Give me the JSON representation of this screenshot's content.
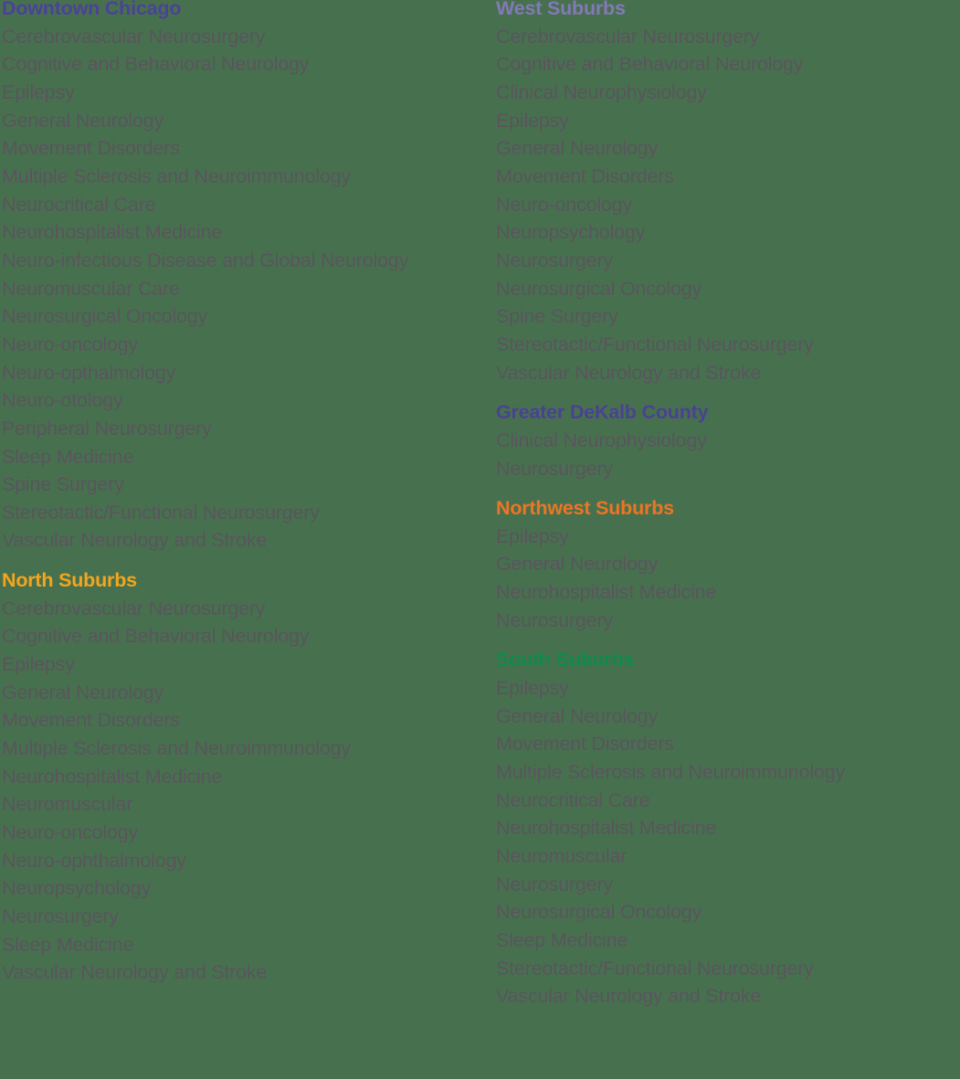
{
  "palette": {
    "background": "#47714E",
    "item_text": "#5A545E"
  },
  "columns": [
    {
      "name": "left",
      "groups": [
        {
          "title": "Downtown Chicago",
          "color": "#4C4199",
          "items": [
            "Cerebrovascular Neurosurgery",
            "Cognitive and Behavioral Neurology",
            "Epilepsy",
            "General Neurology",
            "Movement Disorders",
            "Multiple Sclerosis and Neuroimmunology",
            "Neurocritical Care",
            "Neurohospitalist Medicine",
            "Neuro-infectious Disease and Global Neurology",
            "Neuromuscular Care",
            "Neurosurgical Oncology",
            "Neuro-oncology",
            "Neuro-opthalmology",
            "Neuro-otology",
            "Peripheral Neurosurgery",
            "Sleep Medicine",
            "Spine Surgery",
            "Stereotactic/Functional Neurosurgery",
            "Vascular Neurology and Stroke"
          ]
        },
        {
          "title": "North Suburbs",
          "color": "#F5A51C",
          "items": [
            "Cerebrovascular Neurosurgery",
            "Cognitive and Behavioral Neurology",
            "Epilepsy",
            "General Neurology",
            "Movement Disorders",
            "Multiple Sclerosis and Neuroimmunology",
            "Neurohospitalist Medicine",
            "Neuromuscular",
            "Neuro-oncology",
            "Neuro-ophthalmology",
            "Neuropsychology",
            "Neurosurgery",
            "Sleep Medicine",
            "Vascular Neurology and Stroke"
          ]
        }
      ]
    },
    {
      "name": "right",
      "groups": [
        {
          "title": "West Suburbs",
          "color": "#8478B8",
          "items": [
            "Cerebrovascular Neurosurgery",
            "Cognitive and Behavioral Neurology",
            "Clinical Neurophysiology",
            "Epilepsy",
            "General Neurology",
            "Movement Disorders",
            "Neuro-oncology",
            "Neuropsychology",
            "Neurosurgery",
            "Neurosurgical Oncology",
            "Spine Surgery",
            "Stereotactic/Functional Neurosurgery",
            "Vascular Neurology and Stroke"
          ]
        },
        {
          "title": "Greater DeKalb County",
          "color": "#4B4194",
          "items": [
            "Clinical Neurophysiology",
            "Neurosurgery"
          ]
        },
        {
          "title": "Northwest Suburbs",
          "color": "#EE7523",
          "items": [
            "Epilepsy",
            "General Neurology",
            "Neurohospitalist Medicine",
            "Neurosurgery"
          ]
        },
        {
          "title": "South Suburbs",
          "color": "#0F8A4D",
          "items": [
            "Epilepsy",
            "General Neurology",
            "Movement Disorders",
            "Multiple Sclerosis and Neuroimmunology",
            "Neurocritical Care",
            "Neurohospitalist Medicine",
            "Neuromuscular",
            "Neurosurgery",
            "Neurosurgical Oncology",
            "Sleep Medicine",
            "Stereotactic/Functional Neurosurgery",
            "Vascular Neurology and Stroke"
          ]
        }
      ]
    }
  ]
}
